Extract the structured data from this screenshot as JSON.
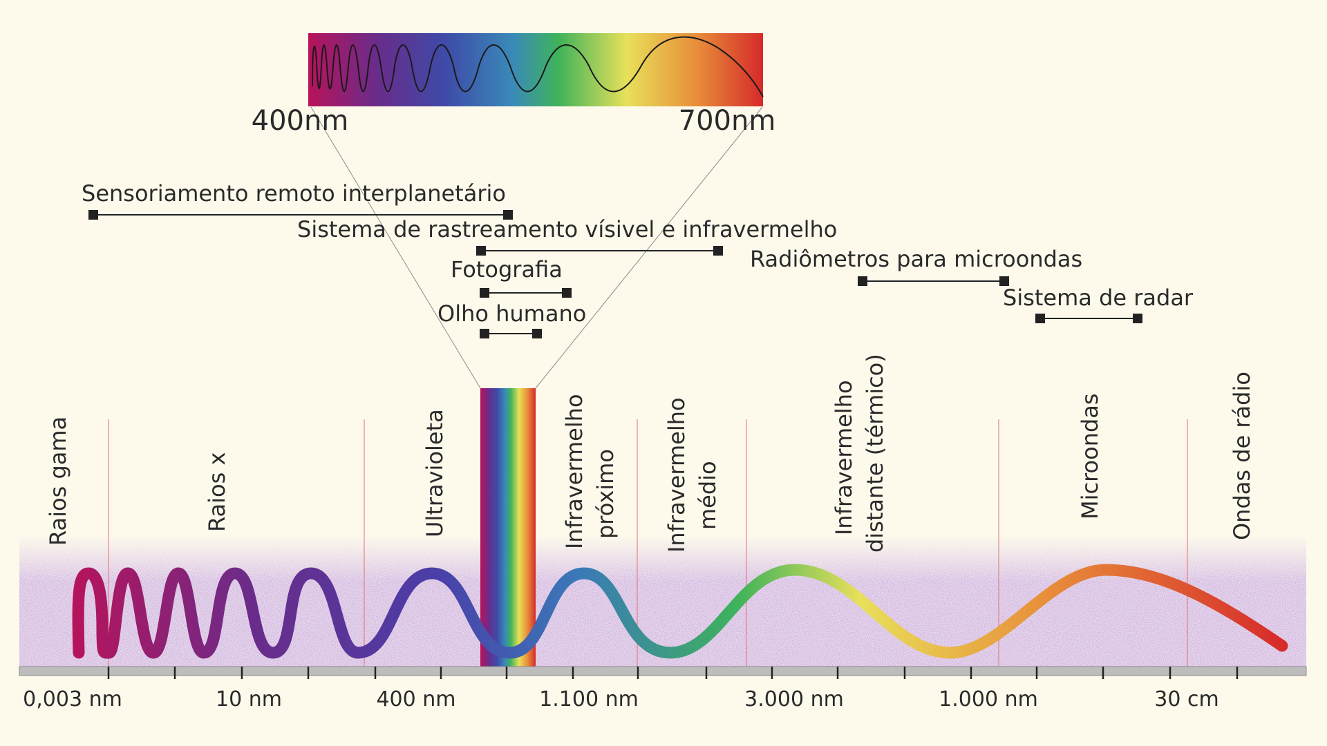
{
  "visible_band": {
    "start_label": "400nm",
    "end_label": "700nm"
  },
  "applications": [
    {
      "label": "Sensoriamento remoto interplanetário"
    },
    {
      "label": "Sistema de rastreamento vísivel e infravermelho"
    },
    {
      "label": "Fotografia"
    },
    {
      "label": "Olho humano"
    },
    {
      "label": "Radiômetros para microondas"
    },
    {
      "label": "Sistema de radar"
    }
  ],
  "regions": [
    {
      "lines": [
        "Raios gama"
      ]
    },
    {
      "lines": [
        "Raios x"
      ]
    },
    {
      "lines": [
        "Ultravioleta"
      ]
    },
    {
      "lines": [
        "Infravermelho",
        "próximo"
      ]
    },
    {
      "lines": [
        "Infravermelho",
        "médio"
      ]
    },
    {
      "lines": [
        "Infravermelho",
        "distante (térmico)"
      ]
    },
    {
      "lines": [
        "Microondas"
      ]
    },
    {
      "lines": [
        "Ondas de rádio"
      ]
    }
  ],
  "scale_labels": [
    "0,003 nm",
    "10 nm",
    "400 nm",
    "1.100 nm",
    "3.000 nm",
    "1.000 nm",
    "30 cm"
  ],
  "colors": {
    "background": "#fdfaec",
    "divider": "#e07070",
    "axis": "#bdbdbd",
    "marker": "#222222",
    "noise_tint": "#8a4fa0",
    "spectrum": [
      "#b8135a",
      "#6a2c8a",
      "#3e4aa8",
      "#3a8ab8",
      "#3fb35a",
      "#e8e05a",
      "#e8903a",
      "#d62a2a"
    ]
  }
}
